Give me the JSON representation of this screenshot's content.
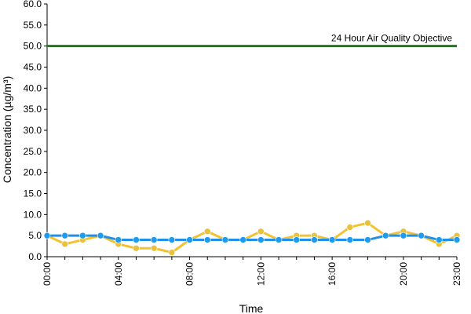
{
  "chart_data": {
    "type": "line",
    "xlabel": "Time",
    "ylabel": "Concentration (µg/m³)",
    "ylim": [
      0,
      60
    ],
    "y_ticks": [
      "0.0",
      "5.0",
      "10.0",
      "15.0",
      "20.0",
      "25.0",
      "30.0",
      "35.0",
      "40.0",
      "45.0",
      "50.0",
      "55.0",
      "60.0"
    ],
    "x_hours": [
      0,
      1,
      2,
      3,
      4,
      5,
      6,
      7,
      8,
      9,
      10,
      11,
      12,
      13,
      14,
      15,
      16,
      17,
      18,
      19,
      20,
      21,
      22,
      23
    ],
    "x_tick_labels": [
      {
        "hour": 0,
        "label": "00:00"
      },
      {
        "hour": 4,
        "label": "04:00"
      },
      {
        "hour": 8,
        "label": "08:00"
      },
      {
        "hour": 12,
        "label": "12:00"
      },
      {
        "hour": 16,
        "label": "16:00"
      },
      {
        "hour": 20,
        "label": "20:00"
      },
      {
        "hour": 23,
        "label": "23:00"
      }
    ],
    "grid": false,
    "series": [
      {
        "color": "#F2C232",
        "marker_color": "#E8C23C",
        "values": [
          5,
          3,
          4,
          5,
          3,
          2,
          2,
          1,
          4,
          6,
          4,
          4,
          6,
          4,
          5,
          5,
          4,
          7,
          8,
          5,
          6,
          5,
          3,
          5
        ]
      },
      {
        "color": "#1E90E8",
        "marker_color": "#1E9BEF",
        "values": [
          5,
          5,
          5,
          5,
          4,
          4,
          4,
          4,
          4,
          4,
          4,
          4,
          4,
          4,
          4,
          4,
          4,
          4,
          4,
          5,
          5,
          5,
          4,
          4
        ]
      }
    ],
    "objective_line": {
      "value": 50,
      "label": "24 Hour Air Quality Objective",
      "color": "#1E7A1E"
    }
  }
}
